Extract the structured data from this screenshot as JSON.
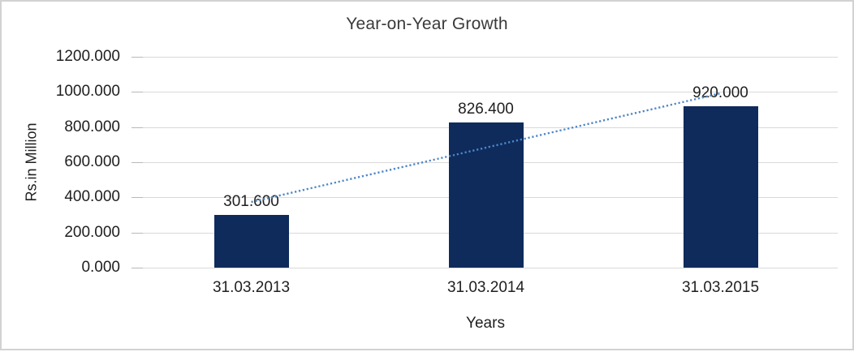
{
  "chart_data": {
    "type": "bar",
    "title": "Year-on-Year Growth",
    "categories": [
      "31.03.2013",
      "31.03.2014",
      "31.03.2015"
    ],
    "values": [
      301.6,
      826.4,
      920.0
    ],
    "data_labels": [
      "301.600",
      "826.400",
      "920.000"
    ],
    "xlabel": "Years",
    "ylabel": "Rs.in Million",
    "ylim": [
      0,
      1200
    ],
    "ytick_values": [
      0,
      200,
      400,
      600,
      800,
      1000,
      1200
    ],
    "ytick_labels": [
      "0.000",
      "200.000",
      "400.000",
      "600.000",
      "800.000",
      "1000.000",
      "1200.000"
    ],
    "grid": true,
    "legend": "none",
    "trendline": {
      "style": "dotted",
      "type": "linear",
      "start_value": 373.5,
      "end_value": 991.9
    }
  },
  "colors": {
    "bar": "#0E2B5C",
    "trendline": "#4E87C6",
    "gridline": "#D9D9D9",
    "tick": "#B8B8B8",
    "frame_border": "#D2D2D2",
    "title_text": "#3A3A3A",
    "label_text": "#1F1F1F"
  }
}
